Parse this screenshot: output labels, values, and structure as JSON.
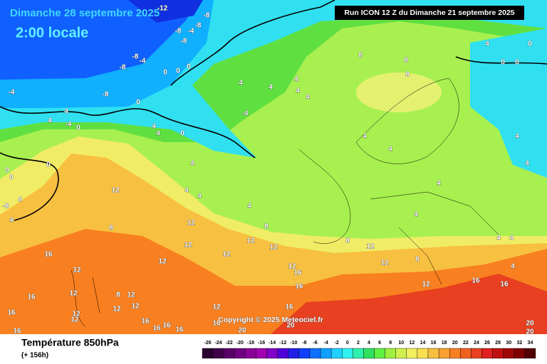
{
  "header": {
    "title": "Dimanche 28 septembre 2025",
    "subtitle": "2:00 locale",
    "run": "Run ICON 12 Z du Dimanche 21 septembre 2025"
  },
  "copyright": "Copyright © 2025 Meteociel.fr",
  "footer": {
    "title": "Température 850hPa",
    "lead": "(+ 156h)"
  },
  "scale": [
    {
      "value": -26,
      "color": "#2a0030"
    },
    {
      "value": -24,
      "color": "#40004a"
    },
    {
      "value": -22,
      "color": "#580068"
    },
    {
      "value": -20,
      "color": "#700080"
    },
    {
      "value": -18,
      "color": "#8a0098"
    },
    {
      "value": -16,
      "color": "#a000b0"
    },
    {
      "value": -14,
      "color": "#8000c8"
    },
    {
      "value": -12,
      "color": "#5000d8"
    },
    {
      "value": -10,
      "color": "#2020e8"
    },
    {
      "value": -8,
      "color": "#1040ff"
    },
    {
      "value": -6,
      "color": "#1070ff"
    },
    {
      "value": -4,
      "color": "#10a0ff"
    },
    {
      "value": -2,
      "color": "#20d0ff"
    },
    {
      "value": 0,
      "color": "#30f0f0"
    },
    {
      "value": 2,
      "color": "#30f0b0"
    },
    {
      "value": 4,
      "color": "#30e060"
    },
    {
      "value": 6,
      "color": "#60f040"
    },
    {
      "value": 8,
      "color": "#a0f040"
    },
    {
      "value": 10,
      "color": "#d0f050"
    },
    {
      "value": 12,
      "color": "#f0f060"
    },
    {
      "value": 14,
      "color": "#f8e050"
    },
    {
      "value": 16,
      "color": "#f8c040"
    },
    {
      "value": 18,
      "color": "#f8a030"
    },
    {
      "value": 20,
      "color": "#f88020"
    },
    {
      "value": 22,
      "color": "#f06020"
    },
    {
      "value": 24,
      "color": "#e84020"
    },
    {
      "value": 26,
      "color": "#e02020"
    },
    {
      "value": 28,
      "color": "#c01010"
    },
    {
      "value": 30,
      "color": "#a00808"
    },
    {
      "value": 32,
      "color": "#800000"
    },
    {
      "value": 34,
      "color": "#500000"
    }
  ],
  "map_labels": [
    -12,
    -8,
    -8,
    -8,
    -4,
    -8,
    -8,
    -4,
    -8,
    0,
    0,
    0,
    -4,
    -8,
    0,
    4,
    4,
    -4,
    0,
    4,
    4,
    0,
    4,
    4,
    4,
    4,
    4,
    -4,
    8,
    8,
    8,
    4,
    0,
    0,
    0,
    4,
    4,
    4,
    4,
    4,
    0,
    0,
    0,
    -8,
    4,
    4,
    4,
    4,
    4,
    12,
    8,
    12,
    8,
    12,
    12,
    12,
    12,
    8,
    12,
    4,
    4,
    4,
    4,
    16,
    12,
    12,
    12,
    8,
    12,
    16,
    16,
    12,
    16,
    16,
    16,
    12,
    8,
    12,
    12,
    12,
    12,
    12,
    16,
    16,
    16,
    16,
    16,
    12,
    16,
    16,
    20,
    20,
    20,
    20,
    16,
    4
  ]
}
